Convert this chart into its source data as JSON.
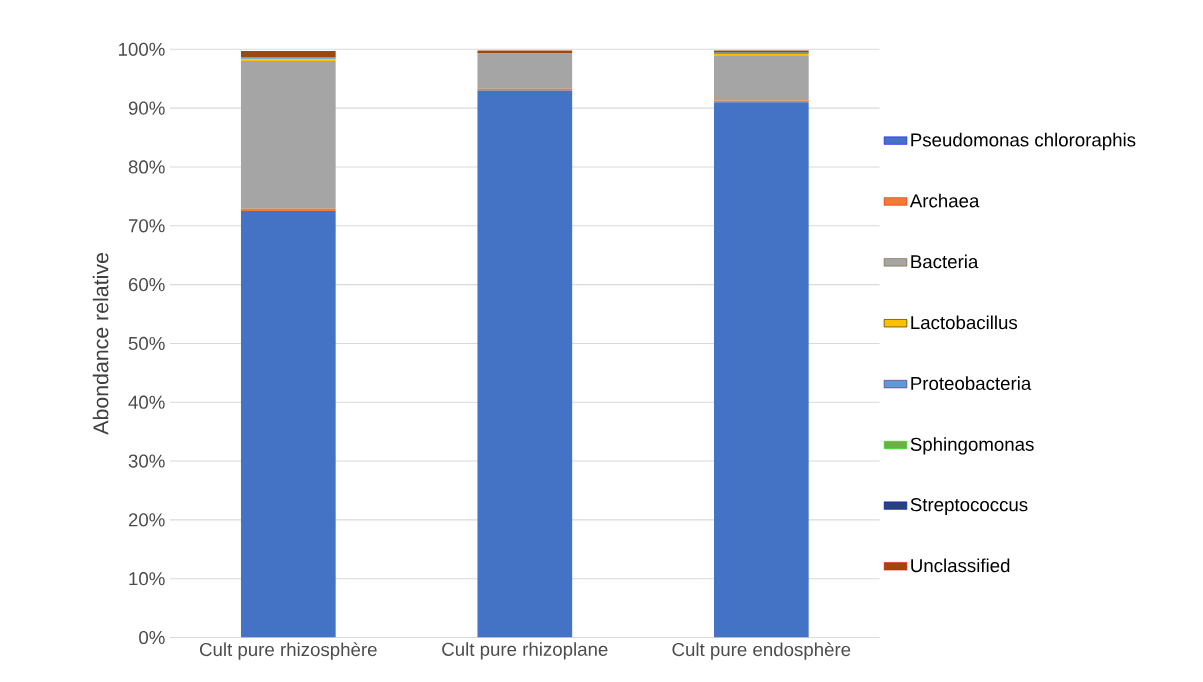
{
  "chart_data": {
    "type": "bar",
    "stacked": true,
    "ylabel": "Abondance relative",
    "categories": [
      "Cult pure rhizosphère",
      "Cult pure rhizoplane",
      "Cult pure endosphère"
    ],
    "series": [
      {
        "name": "Pseudomonas chlororaphis",
        "color": "#4472c4",
        "values": [
          72.5,
          93.0,
          91.0
        ]
      },
      {
        "name": "Archaea",
        "color": "#ed7d31",
        "values": [
          0.4,
          0.3,
          0.3
        ]
      },
      {
        "name": "Bacteria",
        "color": "#a5a5a5",
        "values": [
          25.1,
          6.0,
          7.7
        ]
      },
      {
        "name": "Lactobacillus",
        "color": "#ffc000",
        "values": [
          0.3,
          null,
          0.2
        ]
      },
      {
        "name": "Proteobacteria",
        "color": "#5b9bd5",
        "values": [
          0.2,
          0,
          0
        ]
      },
      {
        "name": "Sphingomonas",
        "color": "#70ad47",
        "values": [
          0.1,
          0,
          0.2
        ]
      },
      {
        "name": "Streptococcus",
        "color": "#264478",
        "values": [
          0.1,
          0,
          0.1
        ]
      },
      {
        "name": "Unclassified",
        "color": "#9e480e",
        "values": [
          1.0,
          0.5,
          0.3
        ]
      }
    ],
    "ylim": [
      0,
      100
    ],
    "yticks": [
      {
        "value": 0,
        "label": "0%"
      },
      {
        "value": 10,
        "label": "10%"
      },
      {
        "value": 20,
        "label": "20%"
      },
      {
        "value": 30,
        "label": "30%"
      },
      {
        "value": 40,
        "label": "40%"
      },
      {
        "value": 50,
        "label": "50%"
      },
      {
        "value": 60,
        "label": "60%"
      },
      {
        "value": 70,
        "label": "70%"
      },
      {
        "value": 80,
        "label": "80%"
      },
      {
        "value": 90,
        "label": "90%"
      },
      {
        "value": 100,
        "label": "100%"
      }
    ],
    "grid": "y",
    "legend": "right"
  }
}
